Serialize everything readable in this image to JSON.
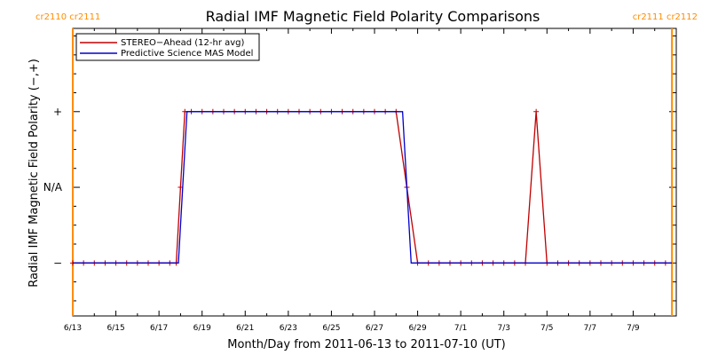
{
  "chart_data": {
    "type": "line",
    "title": "Radial IMF Magnetic Field Polarity Comparisons",
    "xlabel": "Month/Day from 2011-06-13 to 2011-07-10 (UT)",
    "ylabel": "Radial IMF Magnetic Field Polarity (−,+)",
    "x_unit": "days from 2011-06-13",
    "xlim": [
      0,
      28
    ],
    "ylim": [
      -1.7,
      2.1
    ],
    "x_tick_values": [
      0,
      2,
      4,
      6,
      8,
      10,
      12,
      14,
      16,
      18,
      20,
      22,
      24,
      26
    ],
    "x_tick_labels": [
      "6/13",
      "6/15",
      "6/17",
      "6/19",
      "6/21",
      "6/23",
      "6/25",
      "6/27",
      "6/29",
      "7/1",
      "7/3",
      "7/5",
      "7/7",
      "7/9"
    ],
    "y_ticks": [
      {
        "value": 1,
        "label": "+"
      },
      {
        "value": 0,
        "label": "N/A"
      },
      {
        "value": -1,
        "label": "−"
      }
    ],
    "cr_markers": [
      {
        "x": 0,
        "label": "cr2110 cr2111",
        "side": "left"
      },
      {
        "x": 27.8,
        "label": "cr2111 cr2112",
        "side": "right"
      }
    ],
    "legend_placement": "top-left",
    "series": [
      {
        "name": "STEREO−Ahead (12-hr avg)",
        "color": "#c00000",
        "markers": true,
        "x": [
          0,
          0.5,
          1,
          1.5,
          2,
          2.5,
          3,
          3.5,
          4,
          4.5,
          4.8,
          5.0,
          5.2,
          5.5,
          6,
          6.5,
          7,
          7.5,
          8,
          8.5,
          9,
          9.5,
          10,
          10.5,
          11,
          11.5,
          12,
          12.5,
          13,
          13.5,
          14,
          14.5,
          15.0,
          15.5,
          16,
          16.5,
          17,
          17.5,
          18,
          18.5,
          19,
          19.5,
          20,
          20.5,
          21.0,
          21.5,
          22.0,
          22.5,
          23,
          23.5,
          24,
          24.5,
          25,
          25.5,
          26,
          26.5,
          27,
          27.5
        ],
        "y": [
          -1,
          -1,
          -1,
          -1,
          -1,
          -1,
          -1,
          -1,
          -1,
          -1,
          -1,
          0,
          1,
          1,
          1,
          1,
          1,
          1,
          1,
          1,
          1,
          1,
          1,
          1,
          1,
          1,
          1,
          1,
          1,
          1,
          1,
          1,
          1,
          0,
          -1,
          -1,
          -1,
          -1,
          -1,
          -1,
          -1,
          -1,
          -1,
          -1,
          -1,
          1,
          -1,
          -1,
          -1,
          -1,
          -1,
          -1,
          -1,
          -1,
          -1,
          -1,
          -1,
          -1
        ]
      },
      {
        "name": "Predictive Science MAS Model",
        "color": "#0000cc",
        "markers": false,
        "x": [
          0,
          4.9,
          5.3,
          15.3,
          15.7,
          27.8
        ],
        "y": [
          -1,
          -1,
          1,
          1,
          -1,
          -1
        ]
      }
    ],
    "axis_color": "#000000",
    "marker_color": "#ff8c00"
  }
}
